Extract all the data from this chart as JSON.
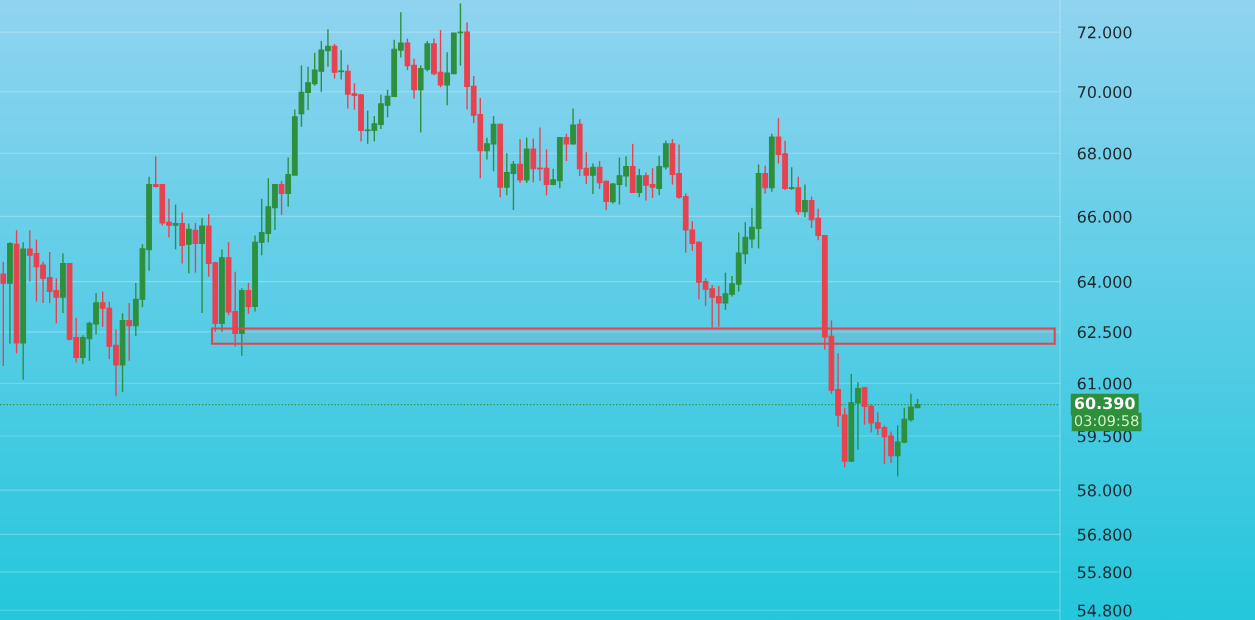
{
  "chart_data": {
    "type": "candlestick",
    "categories": [
      null,
      null,
      null,
      null,
      null,
      null,
      null,
      null,
      null,
      null,
      null,
      null,
      null,
      null,
      null,
      null,
      null,
      null,
      null,
      null,
      null,
      null,
      null,
      null,
      null,
      null,
      null,
      null,
      null,
      null,
      null,
      null,
      null,
      null,
      null,
      null,
      null,
      null,
      null,
      null,
      null,
      null,
      null,
      null,
      null,
      null,
      null,
      null,
      null,
      null,
      null,
      null,
      null,
      null,
      null,
      null,
      null,
      null,
      null,
      null,
      null,
      null,
      null,
      null,
      null,
      null,
      null,
      null,
      null,
      null,
      null,
      null,
      null,
      null,
      null,
      null,
      null,
      null,
      null,
      null,
      null,
      null,
      null,
      null,
      null,
      null,
      null,
      null,
      null,
      null,
      null,
      null,
      null,
      null,
      null,
      null,
      null,
      null,
      null,
      null,
      null,
      null,
      null,
      null,
      null,
      null,
      null,
      null,
      null,
      null,
      null,
      null,
      null,
      null,
      null,
      null,
      null,
      null,
      null,
      null,
      null,
      null,
      null,
      null,
      null,
      null,
      null,
      null,
      null,
      null,
      null,
      null,
      null,
      null,
      null,
      null,
      null,
      null,
      null,
      null,
      null,
      null,
      null,
      null,
      null,
      null,
      null,
      null,
      null,
      null,
      null,
      null,
      null,
      null,
      null,
      null,
      null,
      null,
      null,
      null
    ],
    "ohlc": [
      [
        64.23,
        64.6,
        61.5,
        63.95
      ],
      [
        63.95,
        65.2,
        62.15,
        65.16
      ],
      [
        65.14,
        65.57,
        61.87,
        62.17
      ],
      [
        62.17,
        65.2,
        61.1,
        64.99
      ],
      [
        64.99,
        65.57,
        64.0,
        64.8
      ],
      [
        64.85,
        65.28,
        63.4,
        64.45
      ],
      [
        64.5,
        64.6,
        63.36,
        64.1
      ],
      [
        64.12,
        64.9,
        63.35,
        63.7
      ],
      [
        63.73,
        64.1,
        62.75,
        63.53
      ],
      [
        63.53,
        64.86,
        63.06,
        64.55
      ],
      [
        64.55,
        64.55,
        62.25,
        62.28
      ],
      [
        62.33,
        62.92,
        61.6,
        61.75
      ],
      [
        61.75,
        62.4,
        61.55,
        62.33
      ],
      [
        62.3,
        62.8,
        61.65,
        62.75
      ],
      [
        62.73,
        63.66,
        62.42,
        63.36
      ],
      [
        63.36,
        63.7,
        62.65,
        63.2
      ],
      [
        63.2,
        63.4,
        61.7,
        62.08
      ],
      [
        62.1,
        62.57,
        60.63,
        61.53
      ],
      [
        61.53,
        63.05,
        60.75,
        62.83
      ],
      [
        62.83,
        63.36,
        61.65,
        62.68
      ],
      [
        62.68,
        63.96,
        62.38,
        63.47
      ],
      [
        63.47,
        65.14,
        63.23,
        65.0
      ],
      [
        64.97,
        67.25,
        64.33,
        67.0
      ],
      [
        67.0,
        67.9,
        66.9,
        66.94
      ],
      [
        67.0,
        67.02,
        65.72,
        65.8
      ],
      [
        65.82,
        66.55,
        65.35,
        65.73
      ],
      [
        65.73,
        66.37,
        64.98,
        65.78
      ],
      [
        65.78,
        66.12,
        64.55,
        65.1
      ],
      [
        65.14,
        65.78,
        64.25,
        65.6
      ],
      [
        65.57,
        65.8,
        64.27,
        65.16
      ],
      [
        65.16,
        65.95,
        63.06,
        65.7
      ],
      [
        65.7,
        66.07,
        64.15,
        64.55
      ],
      [
        64.57,
        64.6,
        62.5,
        62.75
      ],
      [
        62.75,
        64.98,
        62.5,
        64.72
      ],
      [
        64.72,
        65.2,
        63.0,
        63.09
      ],
      [
        63.1,
        64.3,
        62.07,
        62.45
      ],
      [
        62.45,
        63.8,
        61.8,
        63.73
      ],
      [
        63.73,
        63.96,
        63.04,
        63.25
      ],
      [
        63.25,
        65.41,
        63.1,
        65.2
      ],
      [
        65.2,
        66.55,
        64.8,
        65.5
      ],
      [
        65.47,
        67.2,
        65.2,
        66.3
      ],
      [
        66.27,
        67.02,
        65.58,
        67.0
      ],
      [
        67.0,
        67.12,
        66.05,
        66.72
      ],
      [
        66.72,
        67.86,
        66.3,
        67.32
      ],
      [
        67.3,
        69.42,
        67.3,
        69.18
      ],
      [
        69.28,
        70.88,
        68.85,
        69.98
      ],
      [
        69.98,
        70.83,
        69.4,
        70.3
      ],
      [
        70.27,
        71.3,
        70.2,
        70.72
      ],
      [
        70.68,
        71.7,
        70.0,
        71.39
      ],
      [
        71.37,
        72.1,
        70.83,
        71.52
      ],
      [
        71.52,
        71.6,
        70.44,
        70.65
      ],
      [
        70.67,
        71.39,
        70.41,
        70.69
      ],
      [
        70.68,
        70.9,
        69.45,
        69.92
      ],
      [
        69.93,
        70.28,
        69.41,
        69.88
      ],
      [
        69.9,
        69.93,
        68.38,
        68.73
      ],
      [
        68.73,
        69.38,
        68.3,
        68.75
      ],
      [
        68.73,
        69.2,
        68.38,
        68.95
      ],
      [
        68.93,
        69.9,
        68.78,
        69.6
      ],
      [
        69.56,
        70.07,
        69.16,
        69.85
      ],
      [
        69.85,
        71.74,
        69.83,
        71.42
      ],
      [
        71.39,
        72.68,
        71.14,
        71.63
      ],
      [
        71.63,
        71.78,
        70.72,
        70.87
      ],
      [
        70.88,
        71.1,
        69.78,
        70.07
      ],
      [
        70.07,
        70.88,
        68.67,
        70.77
      ],
      [
        70.75,
        71.7,
        70.68,
        71.6
      ],
      [
        71.6,
        71.78,
        70.55,
        70.6
      ],
      [
        70.65,
        72.07,
        70.15,
        70.23
      ],
      [
        70.23,
        71.32,
        69.56,
        70.62
      ],
      [
        70.6,
        71.97,
        70.58,
        71.97
      ],
      [
        71.98,
        72.98,
        70.87,
        72.0
      ],
      [
        72.0,
        72.33,
        69.42,
        70.18
      ],
      [
        70.18,
        70.52,
        68.97,
        69.23
      ],
      [
        69.25,
        69.8,
        67.2,
        68.08
      ],
      [
        68.08,
        68.5,
        67.8,
        68.3
      ],
      [
        68.3,
        69.2,
        67.42,
        68.93
      ],
      [
        68.93,
        68.95,
        66.6,
        66.92
      ],
      [
        66.92,
        68.0,
        66.66,
        67.38
      ],
      [
        67.35,
        67.75,
        66.2,
        67.64
      ],
      [
        67.64,
        68.45,
        67.05,
        67.15
      ],
      [
        67.15,
        68.5,
        67.05,
        68.13
      ],
      [
        68.13,
        68.47,
        67.07,
        67.5
      ],
      [
        67.52,
        68.83,
        67.12,
        67.5
      ],
      [
        67.52,
        68.12,
        66.66,
        67.0
      ],
      [
        67.0,
        67.5,
        66.98,
        67.15
      ],
      [
        67.12,
        68.52,
        66.88,
        68.5
      ],
      [
        68.5,
        68.63,
        67.75,
        68.3
      ],
      [
        68.3,
        69.45,
        68.28,
        68.91
      ],
      [
        68.93,
        69.1,
        67.27,
        67.5
      ],
      [
        67.52,
        68.03,
        67.02,
        67.3
      ],
      [
        67.3,
        67.67,
        66.7,
        67.55
      ],
      [
        67.55,
        67.75,
        66.86,
        67.06
      ],
      [
        67.1,
        67.12,
        66.2,
        66.47
      ],
      [
        66.46,
        67.05,
        66.4,
        67.02
      ],
      [
        67.0,
        67.86,
        66.37,
        67.28
      ],
      [
        67.27,
        67.9,
        66.93,
        67.57
      ],
      [
        67.57,
        68.3,
        66.75,
        66.75
      ],
      [
        66.75,
        67.5,
        66.6,
        67.28
      ],
      [
        67.28,
        67.38,
        66.5,
        66.98
      ],
      [
        67.0,
        67.52,
        66.58,
        66.92
      ],
      [
        66.88,
        67.92,
        66.66,
        67.57
      ],
      [
        67.56,
        68.4,
        67.48,
        68.3
      ],
      [
        68.3,
        68.45,
        67.0,
        67.32
      ],
      [
        67.35,
        68.28,
        66.55,
        66.6
      ],
      [
        66.62,
        66.72,
        64.88,
        65.58
      ],
      [
        65.58,
        65.85,
        64.94,
        65.16
      ],
      [
        65.2,
        65.23,
        63.47,
        63.98
      ],
      [
        64.0,
        64.1,
        63.27,
        63.77
      ],
      [
        63.78,
        63.9,
        62.63,
        63.53
      ],
      [
        63.55,
        63.87,
        62.65,
        63.36
      ],
      [
        63.36,
        64.27,
        63.15,
        63.63
      ],
      [
        63.62,
        64.17,
        63.55,
        63.93
      ],
      [
        63.92,
        65.5,
        63.7,
        64.87
      ],
      [
        64.85,
        65.82,
        64.54,
        65.35
      ],
      [
        65.3,
        66.27,
        65.03,
        65.66
      ],
      [
        65.63,
        67.64,
        65.01,
        67.35
      ],
      [
        67.35,
        67.6,
        66.72,
        66.9
      ],
      [
        66.9,
        68.63,
        66.77,
        68.52
      ],
      [
        68.52,
        69.13,
        67.67,
        67.96
      ],
      [
        67.98,
        68.4,
        66.83,
        66.88
      ],
      [
        66.88,
        67.55,
        66.83,
        66.9
      ],
      [
        66.9,
        67.25,
        66.05,
        66.15
      ],
      [
        66.15,
        67.0,
        65.98,
        66.5
      ],
      [
        66.5,
        66.62,
        65.64,
        65.9
      ],
      [
        65.94,
        66.24,
        65.26,
        65.41
      ],
      [
        65.41,
        65.41,
        61.97,
        62.35
      ],
      [
        62.37,
        62.84,
        60.7,
        60.8
      ],
      [
        60.82,
        61.87,
        59.76,
        60.09
      ],
      [
        60.09,
        60.3,
        58.63,
        58.8
      ],
      [
        58.8,
        61.27,
        58.78,
        60.44
      ],
      [
        60.44,
        61.03,
        59.12,
        60.85
      ],
      [
        60.87,
        60.9,
        59.82,
        60.34
      ],
      [
        60.34,
        60.4,
        59.6,
        59.87
      ],
      [
        59.87,
        60.17,
        59.53,
        59.72
      ],
      [
        59.74,
        59.8,
        58.72,
        59.48
      ],
      [
        59.5,
        59.63,
        58.75,
        58.95
      ],
      [
        58.95,
        59.8,
        58.38,
        59.33
      ],
      [
        59.33,
        60.3,
        59.3,
        59.97
      ],
      [
        59.96,
        60.7,
        59.91,
        60.32
      ],
      [
        60.3,
        60.55,
        60.29,
        60.39
      ],
      null,
      null,
      null,
      null,
      null,
      null,
      null,
      null,
      null,
      null,
      null,
      null,
      null,
      null,
      null,
      null,
      null,
      null,
      null,
      null,
      null
    ],
    "colors": [
      "#e8424e",
      "#2e8f3c",
      "#e8424e",
      "#2e8f3c",
      "#e8424e",
      "#e8424e",
      "#e8424e",
      "#e8424e",
      "#e8424e",
      "#2e8f3c",
      "#e8424e",
      "#e8424e",
      "#2e8f3c",
      "#2e8f3c",
      "#2e8f3c",
      "#e8424e",
      "#e8424e",
      "#e8424e",
      "#2e8f3c",
      "#e8424e",
      "#2e8f3c",
      "#2e8f3c",
      "#2e8f3c",
      "#e8424e",
      "#e8424e",
      "#e8424e",
      "#2e8f3c",
      "#e8424e",
      "#2e8f3c",
      "#e8424e",
      "#2e8f3c",
      "#e8424e",
      "#e8424e",
      "#2e8f3c",
      "#e8424e",
      "#e8424e",
      "#2e8f3c",
      "#e8424e",
      "#2e8f3c",
      "#2e8f3c",
      "#2e8f3c",
      "#2e8f3c",
      "#e8424e",
      "#2e8f3c",
      "#2e8f3c",
      "#2e8f3c",
      "#2e8f3c",
      "#2e8f3c",
      "#2e8f3c",
      "#2e8f3c",
      "#e8424e",
      "#2e8f3c",
      "#e8424e",
      "#e8424e",
      "#e8424e",
      "#2e8f3c",
      "#2e8f3c",
      "#2e8f3c",
      "#2e8f3c",
      "#2e8f3c",
      "#2e8f3c",
      "#e8424e",
      "#e8424e",
      "#2e8f3c",
      "#2e8f3c",
      "#e8424e",
      "#e8424e",
      "#2e8f3c",
      "#2e8f3c",
      "#2e8f3c",
      "#e8424e",
      "#e8424e",
      "#e8424e",
      "#2e8f3c",
      "#2e8f3c",
      "#e8424e",
      "#2e8f3c",
      "#2e8f3c",
      "#e8424e",
      "#2e8f3c",
      "#e8424e",
      "#e8424e",
      "#e8424e",
      "#2e8f3c",
      "#2e8f3c",
      "#e8424e",
      "#2e8f3c",
      "#e8424e",
      "#e8424e",
      "#2e8f3c",
      "#e8424e",
      "#e8424e",
      "#2e8f3c",
      "#2e8f3c",
      "#2e8f3c",
      "#e8424e",
      "#2e8f3c",
      "#e8424e",
      "#e8424e",
      "#2e8f3c",
      "#2e8f3c",
      "#e8424e",
      "#e8424e",
      "#e8424e",
      "#e8424e",
      "#e8424e",
      "#e8424e",
      "#e8424e",
      "#e8424e",
      "#2e8f3c",
      "#2e8f3c",
      "#2e8f3c",
      "#2e8f3c",
      "#2e8f3c",
      "#2e8f3c",
      "#e8424e",
      "#2e8f3c",
      "#e8424e",
      "#e8424e",
      "#2e8f3c",
      "#e8424e",
      "#2e8f3c",
      "#e8424e",
      "#e8424e",
      "#e8424e",
      "#e8424e",
      "#e8424e",
      "#e8424e",
      "#2e8f3c",
      "#2e8f3c",
      "#e8424e",
      "#e8424e",
      "#e8424e",
      "#e8424e",
      "#e8424e",
      "#2e8f3c",
      "#2e8f3c",
      "#2e8f3c",
      "#2e8f3c",
      null,
      null,
      null,
      null,
      null,
      null,
      null,
      null,
      null,
      null,
      null,
      null,
      null,
      null,
      null,
      null,
      null,
      null,
      null,
      null,
      null
    ],
    "log": "y",
    "ylim": [
      54.55,
      73.1
    ],
    "yticks": [
      {
        "value": 54.8,
        "label": "54.800"
      },
      {
        "value": 55.8,
        "label": "55.800"
      },
      {
        "value": 56.8,
        "label": "56.800"
      },
      {
        "value": 58,
        "label": "58.000"
      },
      {
        "value": 59.5,
        "label": "59.500"
      },
      {
        "value": 61,
        "label": "61.000"
      },
      {
        "value": 62.5,
        "label": "62.500"
      },
      {
        "value": 64,
        "label": "64.000"
      },
      {
        "value": 66,
        "label": "66.000"
      },
      {
        "value": 68,
        "label": "68.000"
      },
      {
        "value": 70,
        "label": "70.000"
      },
      {
        "value": 72,
        "label": "72.000"
      }
    ],
    "grid": "y",
    "tick_labels": "y",
    "ref_lines": [
      {
        "axis": "y",
        "value": 60.39,
        "label": "60.390",
        "color": "#2e8f3c",
        "line_style": "dotted"
      }
    ],
    "bands": [
      {
        "axis": "y",
        "from": 62.15,
        "to": 62.6,
        "color": "#e8424e"
      }
    ],
    "annotations": [
      "03:09:58"
    ]
  }
}
